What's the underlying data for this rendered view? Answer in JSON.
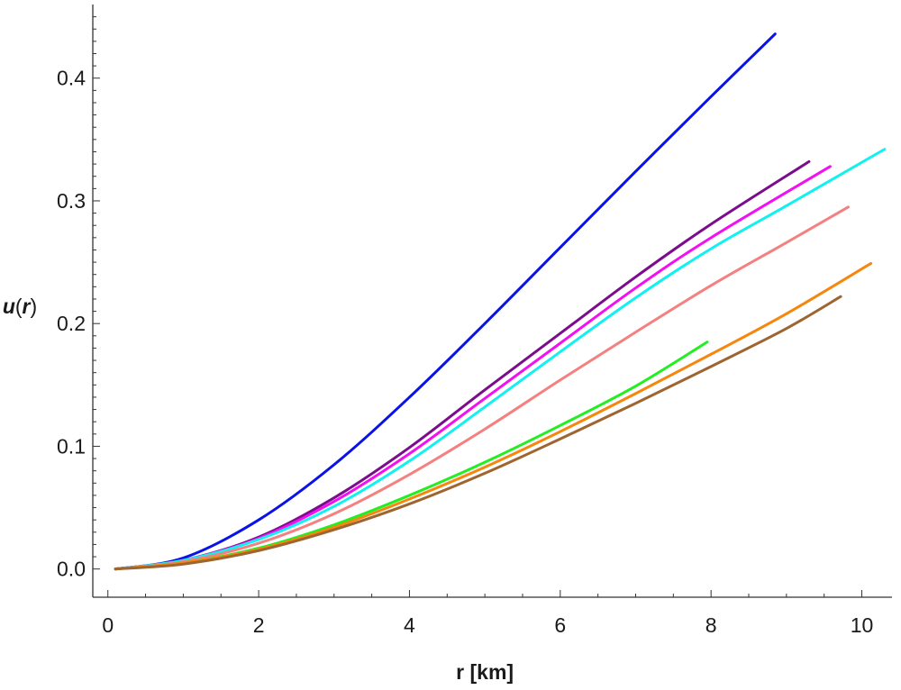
{
  "chart_data": {
    "type": "line",
    "title": "",
    "xlabel": "r [km]",
    "ylabel_main": "u",
    "ylabel_paren_open": "(",
    "ylabel_var": "r",
    "ylabel_paren_close": ")",
    "xlim": [
      -0.2,
      10.4
    ],
    "ylim": [
      -0.023,
      0.46
    ],
    "x_ticks": [
      0,
      2,
      4,
      6,
      8,
      10
    ],
    "x_tick_labels": [
      "0",
      "2",
      "4",
      "6",
      "8",
      "10"
    ],
    "y_ticks": [
      0.0,
      0.1,
      0.2,
      0.3,
      0.4
    ],
    "y_tick_labels": [
      "0.0",
      "0.1",
      "0.2",
      "0.3",
      "0.4"
    ],
    "grid": false,
    "series": [
      {
        "color": "#0a12e6",
        "x": [
          0.1,
          1,
          2,
          3,
          4,
          5,
          6,
          7,
          8,
          8.85
        ],
        "y": [
          0.0,
          0.009,
          0.04,
          0.085,
          0.14,
          0.2,
          0.262,
          0.324,
          0.385,
          0.436
        ]
      },
      {
        "color": "#7b0d8c",
        "x": [
          0.1,
          1,
          2,
          3,
          4,
          5,
          6,
          7,
          8,
          9.3
        ],
        "y": [
          0.0,
          0.007,
          0.026,
          0.058,
          0.099,
          0.146,
          0.192,
          0.238,
          0.281,
          0.332
        ]
      },
      {
        "color": "#f20ff2",
        "x": [
          0.1,
          1,
          2,
          3,
          4,
          5,
          6,
          7,
          8,
          9.58
        ],
        "y": [
          0.0,
          0.007,
          0.025,
          0.055,
          0.094,
          0.139,
          0.184,
          0.229,
          0.27,
          0.328
        ]
      },
      {
        "color": "#12f0f0",
        "x": [
          0.1,
          1,
          2,
          3,
          4,
          5,
          6,
          7,
          8,
          9,
          10.3
        ],
        "y": [
          0.0,
          0.007,
          0.024,
          0.051,
          0.088,
          0.132,
          0.177,
          0.221,
          0.261,
          0.296,
          0.342
        ]
      },
      {
        "color": "#f48080",
        "x": [
          0.1,
          1,
          2,
          3,
          4,
          5,
          6,
          7,
          8,
          9,
          9.82
        ],
        "y": [
          0.0,
          0.006,
          0.021,
          0.045,
          0.077,
          0.114,
          0.154,
          0.193,
          0.231,
          0.266,
          0.295
        ]
      },
      {
        "color": "#22ee22",
        "x": [
          0.1,
          1,
          2,
          3,
          4,
          5,
          6,
          7,
          7.95
        ],
        "y": [
          0.0,
          0.005,
          0.017,
          0.036,
          0.06,
          0.087,
          0.117,
          0.149,
          0.185
        ]
      },
      {
        "color": "#f6870e",
        "x": [
          0.1,
          1,
          2,
          3,
          4,
          5,
          6,
          7,
          8,
          9,
          10.12
        ],
        "y": [
          0.0,
          0.005,
          0.016,
          0.034,
          0.057,
          0.083,
          0.112,
          0.143,
          0.175,
          0.208,
          0.249
        ]
      },
      {
        "color": "#9e6530",
        "x": [
          0.1,
          1,
          2,
          3,
          4,
          5,
          6,
          7,
          8,
          9,
          9.72
        ],
        "y": [
          0.0,
          0.004,
          0.015,
          0.032,
          0.053,
          0.078,
          0.106,
          0.135,
          0.165,
          0.196,
          0.222
        ]
      }
    ]
  }
}
